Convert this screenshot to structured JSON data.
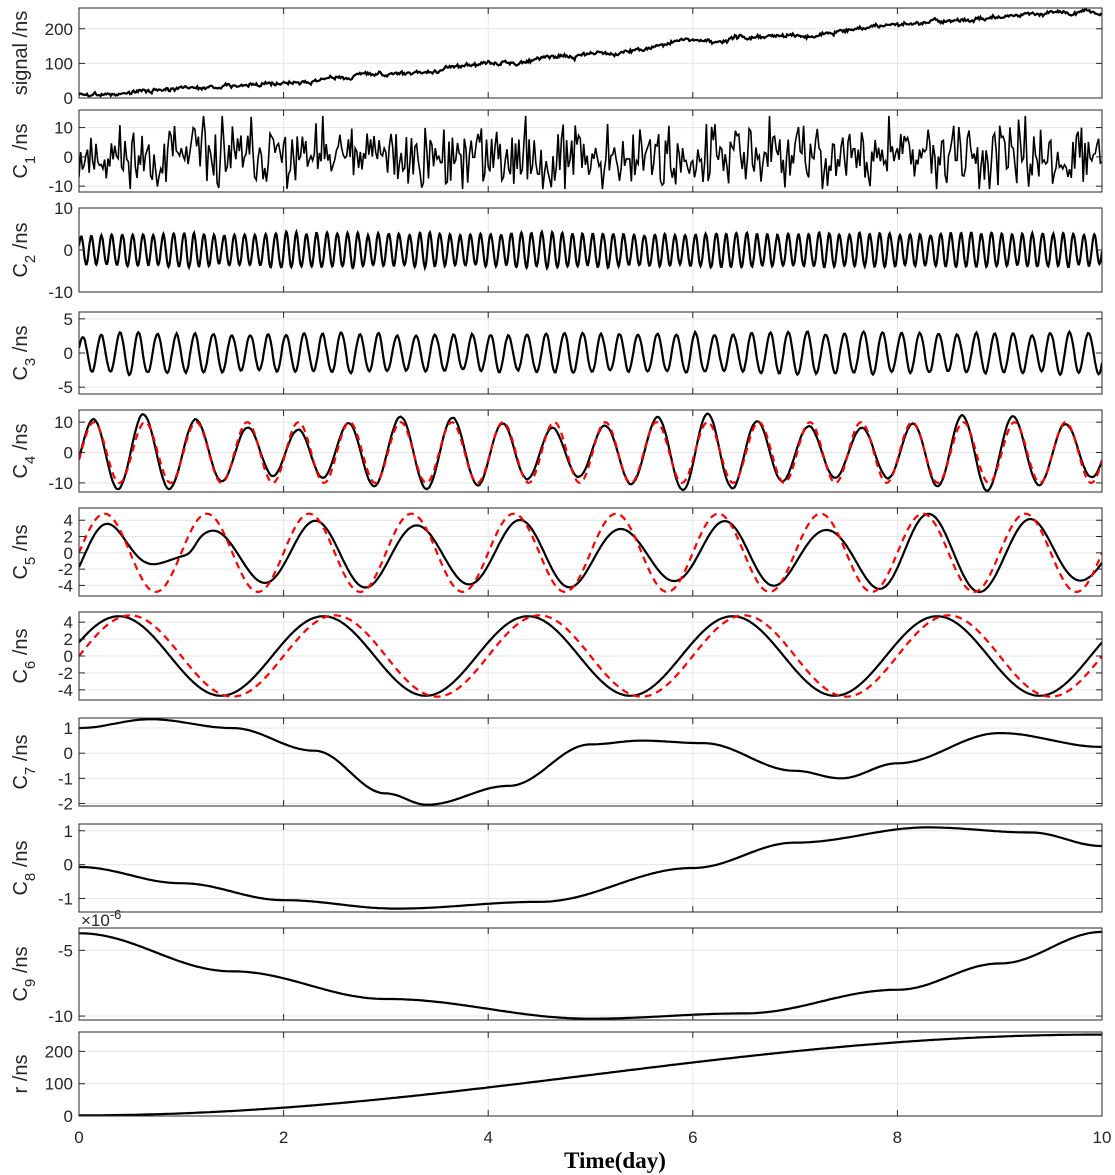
{
  "chart_data": {
    "type": "line",
    "xlabel": "Time(day)",
    "xlim": [
      0,
      10
    ],
    "xticks": [
      0,
      2,
      4,
      6,
      8,
      10
    ],
    "grid": true,
    "colors": {
      "signal": "#000000",
      "fit": "#ff0000"
    },
    "panels": [
      {
        "id": "signal",
        "ylabel": [
          "signal /ns",
          ""
        ],
        "ylim": [
          0,
          260
        ],
        "yticks": [
          0,
          100,
          200
        ],
        "series": [
          {
            "style": "solid",
            "color": "#000000",
            "kind": "noisy-trend",
            "start": 10,
            "end": 250,
            "noise": 6,
            "seed": 3,
            "approx_points": [
              [
                0,
                10
              ],
              [
                0.3,
                15
              ],
              [
                1,
                25
              ],
              [
                2,
                45
              ],
              [
                3,
                70
              ],
              [
                4,
                100
              ],
              [
                5,
                125
              ],
              [
                6,
                165
              ],
              [
                7,
                180
              ],
              [
                8,
                215
              ],
              [
                9,
                235
              ],
              [
                10,
                250
              ]
            ]
          }
        ]
      },
      {
        "id": "c1",
        "ylabel": [
          "C",
          "1",
          " /ns"
        ],
        "ylim": [
          -12,
          16
        ],
        "yticks": [
          -10,
          0,
          10
        ],
        "series": [
          {
            "style": "solid",
            "color": "#000000",
            "kind": "noise",
            "amplitude": 5,
            "n": 600,
            "seed": 11,
            "approx_range": [
              -11,
              14
            ]
          }
        ]
      },
      {
        "id": "c2",
        "ylabel": [
          "C",
          "2",
          " /ns"
        ],
        "ylim": [
          -10,
          10
        ],
        "yticks": [
          -10,
          0,
          10
        ],
        "series": [
          {
            "style": "solid",
            "color": "#000000",
            "kind": "beat",
            "cycles": 100,
            "amp_base": 3,
            "amp_var": 2.5,
            "seed": 21,
            "approx_range": [
              -7,
              8
            ]
          }
        ]
      },
      {
        "id": "c3",
        "ylabel": [
          "C",
          "3",
          " /ns"
        ],
        "ylim": [
          -6,
          6
        ],
        "yticks": [
          -5,
          0,
          5
        ],
        "series": [
          {
            "style": "solid",
            "color": "#000000",
            "kind": "beat",
            "cycles": 55,
            "amp_base": 2.2,
            "amp_var": 2,
            "seed": 31,
            "approx_range": [
              -5.5,
              5.5
            ]
          }
        ]
      },
      {
        "id": "c4",
        "ylabel": [
          "C",
          "4",
          " /ns"
        ],
        "ylim": [
          -13,
          14
        ],
        "yticks": [
          -10,
          0,
          10
        ],
        "series": [
          {
            "style": "solid",
            "color": "#000000",
            "kind": "sine-mod",
            "freq": 2.0,
            "amp": 10,
            "phase": 0.2,
            "mod": 0.22,
            "seed": 41
          },
          {
            "style": "dashed",
            "color": "#ff0000",
            "kind": "sine",
            "freq": 2.0,
            "amp": 10,
            "phase": 0.25
          }
        ]
      },
      {
        "id": "c5",
        "ylabel": [
          "C",
          "5",
          " /ns"
        ],
        "ylim": [
          -5.3,
          5.5
        ],
        "yticks": [
          -4,
          -2,
          0,
          2,
          4
        ],
        "series": [
          {
            "style": "solid",
            "color": "#000000",
            "kind": "sine-env",
            "freq": 1.0,
            "phase": 0.35,
            "envelope": [
              [
                0,
                4.5
              ],
              [
                1,
                0.7
              ],
              [
                1.2,
                2.9
              ],
              [
                2.5,
                4.2
              ],
              [
                3.5,
                3.5
              ],
              [
                4.5,
                4.3
              ],
              [
                5.5,
                3.0
              ],
              [
                6.5,
                4.2
              ],
              [
                7.3,
                3.0
              ],
              [
                8.2,
                5.0
              ],
              [
                9.2,
                4.4
              ],
              [
                10,
                3.0
              ]
            ],
            "bias": -0.2
          },
          {
            "style": "dashed",
            "color": "#ff0000",
            "kind": "sine",
            "freq": 1.0,
            "amp": 4.8,
            "phase": 0.0
          }
        ]
      },
      {
        "id": "c6",
        "ylabel": [
          "C",
          "6",
          " /ns"
        ],
        "ylim": [
          -5.2,
          5.2
        ],
        "yticks": [
          -4,
          -2,
          0,
          2,
          4
        ],
        "series": [
          {
            "style": "solid",
            "color": "#000000",
            "kind": "sine",
            "freq": 0.5,
            "amp": 4.7,
            "phase": -0.35,
            "approx_peaks": [
              [
                0.6,
                5
              ],
              [
                1.6,
                -5
              ],
              [
                2.5,
                4.6
              ],
              [
                3.5,
                -4.6
              ],
              [
                4.5,
                4.5
              ],
              [
                5.5,
                -4.5
              ],
              [
                6.5,
                5
              ],
              [
                7.5,
                -4.8
              ],
              [
                8.5,
                4.7
              ],
              [
                9.5,
                -4.0
              ]
            ]
          },
          {
            "style": "dashed",
            "color": "#ff0000",
            "kind": "sine",
            "freq": 0.5,
            "amp": 4.8,
            "phase": 0
          }
        ]
      },
      {
        "id": "c7",
        "ylabel": [
          "C",
          "7",
          " /ns"
        ],
        "ylim": [
          -2.1,
          1.4
        ],
        "yticks": [
          -2,
          -1,
          0,
          1
        ],
        "series": [
          {
            "style": "solid",
            "color": "#000000",
            "kind": "points",
            "points": [
              [
                0,
                1.0
              ],
              [
                0.7,
                1.35
              ],
              [
                1.5,
                1.0
              ],
              [
                2.3,
                0.1
              ],
              [
                3.0,
                -1.6
              ],
              [
                3.4,
                -2.05
              ],
              [
                4.2,
                -1.3
              ],
              [
                5.0,
                0.35
              ],
              [
                5.5,
                0.5
              ],
              [
                6.1,
                0.4
              ],
              [
                7.0,
                -0.7
              ],
              [
                7.45,
                -1.0
              ],
              [
                8.0,
                -0.4
              ],
              [
                9.0,
                0.8
              ],
              [
                10,
                0.25
              ]
            ]
          }
        ]
      },
      {
        "id": "c8",
        "ylabel": [
          "C",
          "8",
          " /ns"
        ],
        "ylim": [
          -1.4,
          1.2
        ],
        "yticks": [
          -1,
          0,
          1
        ],
        "series": [
          {
            "style": "solid",
            "color": "#000000",
            "kind": "points",
            "points": [
              [
                0,
                -0.07
              ],
              [
                1,
                -0.55
              ],
              [
                2,
                -1.05
              ],
              [
                3.1,
                -1.3
              ],
              [
                4.5,
                -1.1
              ],
              [
                6,
                -0.1
              ],
              [
                7,
                0.65
              ],
              [
                8.3,
                1.1
              ],
              [
                9.3,
                0.95
              ],
              [
                10,
                0.55
              ]
            ]
          }
        ]
      },
      {
        "id": "c9",
        "ylabel": [
          "C",
          "9",
          " /ns"
        ],
        "ylim": [
          -10.3,
          -3.3
        ],
        "yticks": [
          -10,
          -5
        ],
        "multiplier": "×10",
        "multiplier_exp": "-6",
        "series": [
          {
            "style": "solid",
            "color": "#000000",
            "kind": "points",
            "points": [
              [
                0,
                -3.7
              ],
              [
                1.5,
                -6.6
              ],
              [
                3,
                -8.7
              ],
              [
                5,
                -10.2
              ],
              [
                6.5,
                -9.8
              ],
              [
                8,
                -8.0
              ],
              [
                9,
                -6.0
              ],
              [
                10,
                -3.6
              ]
            ]
          }
        ]
      },
      {
        "id": "r",
        "ylabel": [
          "r /ns",
          ""
        ],
        "ylim": [
          0,
          260
        ],
        "yticks": [
          0,
          100,
          200
        ],
        "series": [
          {
            "style": "solid",
            "color": "#000000",
            "kind": "points",
            "points": [
              [
                0,
                2
              ],
              [
                10,
                252
              ]
            ]
          }
        ]
      }
    ]
  }
}
